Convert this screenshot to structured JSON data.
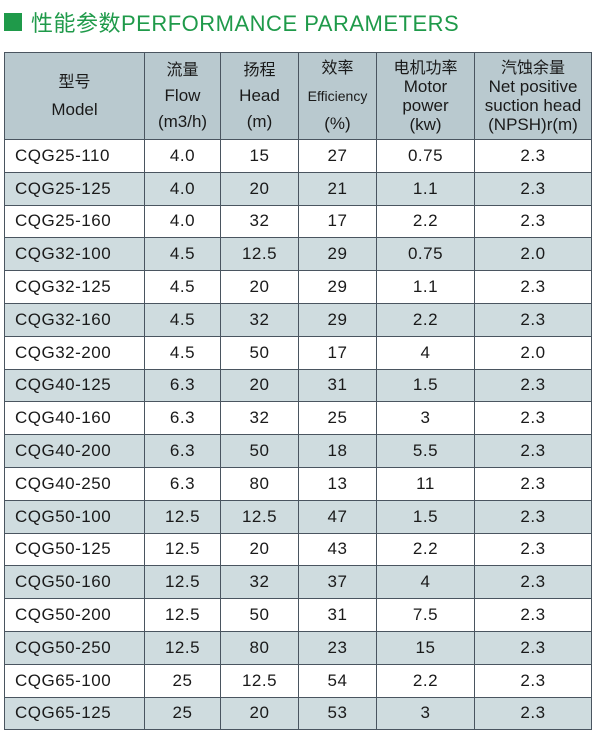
{
  "title": "性能参数PERFORMANCE PARAMETERS",
  "headers": {
    "model": {
      "zh": "型号",
      "en": "Model"
    },
    "flow": {
      "zh": "流量",
      "en": "Flow",
      "unit": "(m3/h)"
    },
    "head": {
      "zh": "扬程",
      "en": "Head",
      "unit": "(m)"
    },
    "efficiency": {
      "zh": "效率",
      "en": "Efficiency",
      "unit": "(%)"
    },
    "power": {
      "zh": "电机功率",
      "en1": "Motor",
      "en2": "power",
      "unit": "(kw)"
    },
    "npsh": {
      "zh": "汽蚀余量",
      "en1": "Net positive",
      "en2": "suction head",
      "unit": "(NPSH)r(m)"
    }
  },
  "rows": [
    [
      "CQG25-110",
      "4.0",
      "15",
      "27",
      "0.75",
      "2.3"
    ],
    [
      "CQG25-125",
      "4.0",
      "20",
      "21",
      "1.1",
      "2.3"
    ],
    [
      "CQG25-160",
      "4.0",
      "32",
      "17",
      "2.2",
      "2.3"
    ],
    [
      "CQG32-100",
      "4.5",
      "12.5",
      "29",
      "0.75",
      "2.0"
    ],
    [
      "CQG32-125",
      "4.5",
      "20",
      "29",
      "1.1",
      "2.3"
    ],
    [
      "CQG32-160",
      "4.5",
      "32",
      "29",
      "2.2",
      "2.3"
    ],
    [
      "CQG32-200",
      "4.5",
      "50",
      "17",
      "4",
      "2.0"
    ],
    [
      "CQG40-125",
      "6.3",
      "20",
      "31",
      "1.5",
      "2.3"
    ],
    [
      "CQG40-160",
      "6.3",
      "32",
      "25",
      "3",
      "2.3"
    ],
    [
      "CQG40-200",
      "6.3",
      "50",
      "18",
      "5.5",
      "2.3"
    ],
    [
      "CQG40-250",
      "6.3",
      "80",
      "13",
      "11",
      "2.3"
    ],
    [
      "CQG50-100",
      "12.5",
      "12.5",
      "47",
      "1.5",
      "2.3"
    ],
    [
      "CQG50-125",
      "12.5",
      "20",
      "43",
      "2.2",
      "2.3"
    ],
    [
      "CQG50-160",
      "12.5",
      "32",
      "37",
      "4",
      "2.3"
    ],
    [
      "CQG50-200",
      "12.5",
      "50",
      "31",
      "7.5",
      "2.3"
    ],
    [
      "CQG50-250",
      "12.5",
      "80",
      "23",
      "15",
      "2.3"
    ],
    [
      "CQG65-100",
      "25",
      "12.5",
      "54",
      "2.2",
      "2.3"
    ],
    [
      "CQG65-125",
      "25",
      "20",
      "53",
      "3",
      "2.3"
    ]
  ],
  "colors": {
    "accent": "#1f9a4a",
    "header_bg": "#b9c9cf",
    "stripe_bg": "#cfdcdf",
    "border": "#4a5560"
  }
}
